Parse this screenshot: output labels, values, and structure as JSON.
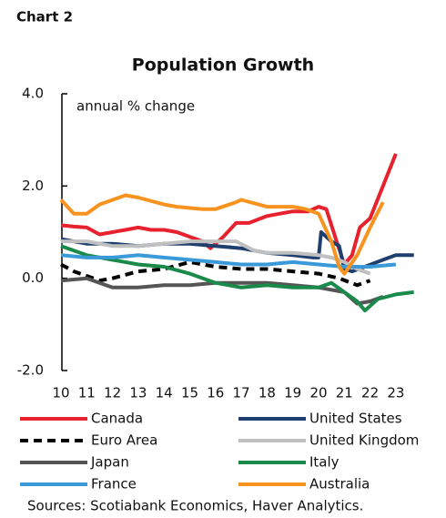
{
  "chart_data": {
    "type": "line",
    "label": "Chart 2",
    "title": "Population Growth",
    "annotation": "annual % change",
    "source": "Sources: Scotiabank Economics, Haver Analytics.",
    "xlim": [
      10,
      24
    ],
    "xticks": [
      10,
      11,
      12,
      13,
      14,
      15,
      16,
      17,
      18,
      19,
      20,
      21,
      22,
      23
    ],
    "ylim": [
      -2,
      4
    ],
    "yticks": [
      {
        "value": 4,
        "label": "4.0"
      },
      {
        "value": 2,
        "label": "2.0"
      },
      {
        "value": 0,
        "label": "0.0"
      },
      {
        "value": -2,
        "label": "-2.0"
      }
    ],
    "series": [
      {
        "name": "Canada",
        "color": "#e8212e",
        "dash": false,
        "x": [
          10,
          10.5,
          11,
          11.5,
          12,
          12.5,
          13,
          13.5,
          14,
          14.5,
          15,
          15.5,
          15.8,
          16.3,
          16.8,
          17.3,
          18,
          18.5,
          19,
          19.6,
          20,
          20.3,
          20.7,
          21,
          21.3,
          21.6,
          22,
          22.5,
          23
        ],
        "values": [
          1.15,
          1.12,
          1.1,
          0.95,
          1.0,
          1.05,
          1.1,
          1.05,
          1.05,
          1.0,
          0.9,
          0.8,
          0.65,
          0.9,
          1.2,
          1.2,
          1.35,
          1.4,
          1.45,
          1.45,
          1.55,
          1.5,
          0.8,
          0.3,
          0.5,
          1.1,
          1.3,
          2.0,
          2.7
        ]
      },
      {
        "name": "United States",
        "color": "#1f3f6e",
        "dash": false,
        "x": [
          10,
          11,
          12,
          13,
          14,
          15,
          16,
          17,
          18,
          19,
          19.8,
          20,
          20.1,
          20.5,
          20.8,
          21,
          21.3,
          21.8,
          22.5,
          23,
          23.7
        ],
        "values": [
          0.85,
          0.75,
          0.75,
          0.7,
          0.75,
          0.75,
          0.7,
          0.65,
          0.55,
          0.5,
          0.45,
          0.45,
          1.0,
          0.8,
          0.7,
          0.2,
          0.15,
          0.25,
          0.4,
          0.5,
          0.5
        ]
      },
      {
        "name": "Euro Area",
        "color": "#000000",
        "dash": true,
        "x": [
          10,
          10.5,
          11.5,
          12,
          13,
          14,
          15,
          16,
          17,
          18,
          19,
          20,
          20.8,
          21.5,
          22
        ],
        "values": [
          0.3,
          0.15,
          -0.05,
          0.0,
          0.15,
          0.2,
          0.35,
          0.25,
          0.2,
          0.2,
          0.15,
          0.1,
          0.0,
          -0.15,
          -0.05
        ]
      },
      {
        "name": "United Kingdom",
        "color": "#c0c0c0",
        "dash": false,
        "x": [
          10,
          11,
          12,
          13,
          14,
          15,
          16,
          16.8,
          17.5,
          18,
          19,
          20,
          20.5,
          21,
          21.5,
          22
        ],
        "values": [
          0.8,
          0.8,
          0.7,
          0.7,
          0.75,
          0.8,
          0.8,
          0.8,
          0.6,
          0.55,
          0.55,
          0.5,
          0.45,
          0.35,
          0.2,
          0.1
        ]
      },
      {
        "name": "Japan",
        "color": "#555555",
        "dash": false,
        "x": [
          10,
          11,
          12,
          13,
          14,
          15,
          16,
          17,
          18,
          19,
          20,
          21,
          21.5,
          22,
          22.5
        ],
        "values": [
          -0.05,
          0.0,
          -0.2,
          -0.2,
          -0.15,
          -0.15,
          -0.1,
          -0.1,
          -0.1,
          -0.15,
          -0.2,
          -0.3,
          -0.55,
          -0.5,
          -0.4
        ]
      },
      {
        "name": "Italy",
        "color": "#1a8a4a",
        "dash": false,
        "x": [
          10,
          11,
          12,
          13,
          14,
          15,
          16,
          17,
          18,
          19,
          20,
          20.5,
          21.5,
          21.8,
          22.3,
          23,
          23.7
        ],
        "values": [
          0.7,
          0.5,
          0.4,
          0.3,
          0.25,
          0.1,
          -0.1,
          -0.2,
          -0.15,
          -0.2,
          -0.2,
          -0.1,
          -0.5,
          -0.7,
          -0.45,
          -0.35,
          -0.3
        ]
      },
      {
        "name": "France",
        "color": "#3a9ad9",
        "dash": false,
        "x": [
          10,
          11,
          12,
          13,
          14,
          15,
          16,
          17,
          18,
          19,
          20,
          21,
          22,
          23
        ],
        "values": [
          0.5,
          0.45,
          0.45,
          0.5,
          0.45,
          0.4,
          0.35,
          0.3,
          0.3,
          0.35,
          0.3,
          0.25,
          0.25,
          0.3
        ]
      },
      {
        "name": "Australia",
        "color": "#f7931e",
        "dash": false,
        "x": [
          10,
          10.5,
          11,
          11.5,
          12.5,
          13,
          14,
          14.5,
          15.5,
          16,
          16.8,
          17,
          18,
          19,
          19.5,
          20,
          20.5,
          20.8,
          21,
          21.5,
          22,
          22.5
        ],
        "values": [
          1.7,
          1.4,
          1.4,
          1.6,
          1.8,
          1.75,
          1.6,
          1.55,
          1.5,
          1.5,
          1.65,
          1.7,
          1.55,
          1.55,
          1.5,
          1.4,
          0.8,
          0.25,
          0.1,
          0.5,
          1.1,
          1.65
        ]
      }
    ]
  }
}
